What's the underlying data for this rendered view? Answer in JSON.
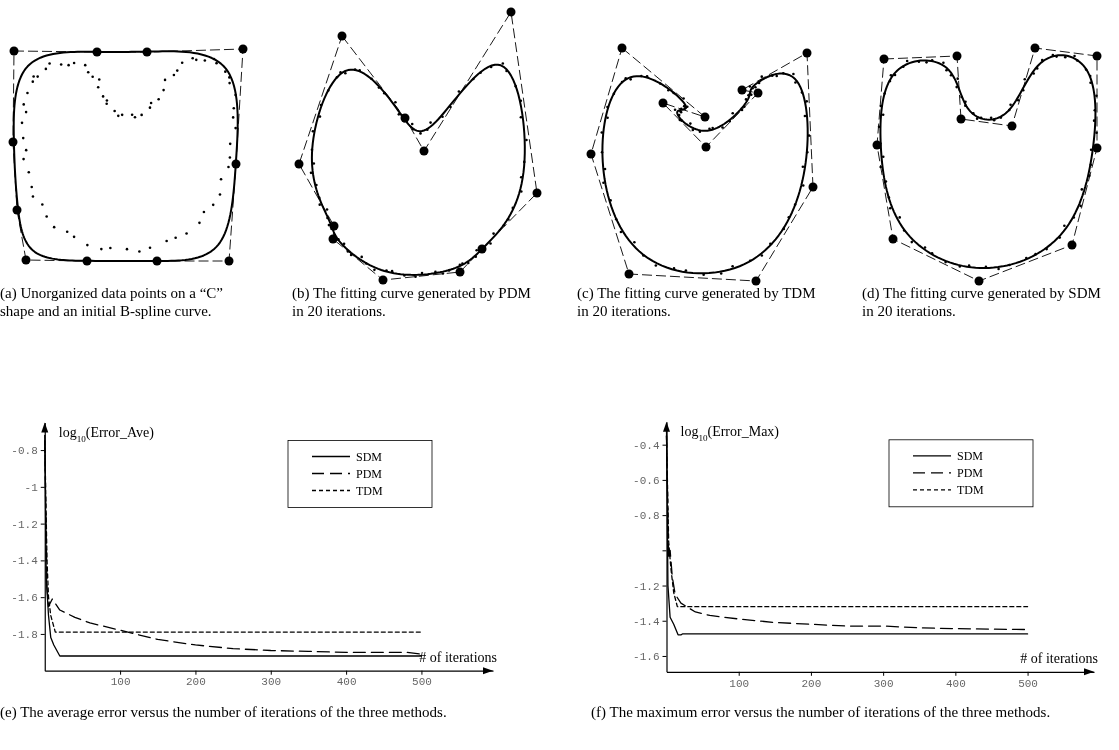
{
  "chart_data": [
    {
      "type": "other",
      "title": "(a) Unorganized data points on a “C” shape and an initial B-spline curve."
    },
    {
      "type": "other",
      "title": "(b) The fitting curve generated by PDM in 20 iterations."
    },
    {
      "type": "other",
      "title": "(c) The fitting curve generated by TDM in 20 iterations."
    },
    {
      "type": "other",
      "title": "(d) The fitting curve generated by SDM in 20 iterations."
    },
    {
      "type": "line",
      "title": "(e) The average error versus the number of iterations of the three methods.",
      "xlabel": "# of iterations",
      "ylabel": "log$_{10}$(Error_Ave)",
      "xlim": [
        0,
        595
      ],
      "ylim": [
        -2,
        -0.65
      ],
      "xticks": [
        100,
        200,
        300,
        400,
        500
      ],
      "yticks": [
        -1.8,
        -1.6,
        -1.4,
        -1.2,
        -1,
        -0.8
      ],
      "legend": "top right",
      "series": [
        {
          "name": "SDM",
          "color": "#000000",
          "line_style": "solid",
          "x": [
            0,
            2,
            5,
            8,
            12,
            20,
            500
          ],
          "values": [
            -0.72,
            -1.5,
            -1.7,
            -1.82,
            -1.86,
            -1.92,
            -1.92
          ]
        },
        {
          "name": "PDM",
          "color": "#000000",
          "line_style": "dashed",
          "x": [
            0,
            3,
            5,
            10,
            20,
            40,
            60,
            100,
            150,
            200,
            250,
            300,
            350,
            400,
            450,
            480,
            500
          ],
          "values": [
            -0.75,
            -1.55,
            -1.65,
            -1.61,
            -1.67,
            -1.71,
            -1.74,
            -1.78,
            -1.83,
            -1.86,
            -1.88,
            -1.89,
            -1.895,
            -1.9,
            -1.9,
            -1.9,
            -1.91
          ]
        },
        {
          "name": "TDM",
          "color": "#000000",
          "line_style": "dotted",
          "x": [
            0,
            3,
            5,
            8,
            14,
            500
          ],
          "values": [
            -0.75,
            -1.4,
            -1.6,
            -1.7,
            -1.79,
            -1.79
          ]
        }
      ]
    },
    {
      "type": "line",
      "title": "(f) The maximum error versus the number of iterations of the three methods.",
      "xlabel": "# of iterations",
      "ylabel": "log$_{10}$(Error_Max)",
      "xlim": [
        0,
        592
      ],
      "ylim": [
        -1.69,
        -0.27
      ],
      "xticks": [
        100,
        200,
        300,
        400,
        500
      ],
      "yticks": [
        -1.6,
        -1.4,
        -1.2,
        {
          "value": -1,
          "label": null
        },
        -0.8,
        -0.6,
        -0.4
      ],
      "legend": "top right",
      "series": [
        {
          "name": "SDM",
          "color": "#000000",
          "line_style": "solid",
          "x": [
            0,
            2,
            5,
            10,
            16,
            20,
            22,
            500
          ],
          "values": [
            -0.3,
            -1.2,
            -1.38,
            -1.42,
            -1.48,
            -1.48,
            -1.475,
            -1.475
          ]
        },
        {
          "name": "PDM",
          "color": "#000000",
          "line_style": "dashed",
          "x": [
            0,
            3,
            5,
            8,
            12,
            20,
            40,
            60,
            100,
            150,
            200,
            250,
            300,
            350,
            400,
            500
          ],
          "values": [
            -0.35,
            -1.05,
            -1.0,
            -1.15,
            -1.25,
            -1.3,
            -1.35,
            -1.37,
            -1.39,
            -1.41,
            -1.42,
            -1.43,
            -1.43,
            -1.44,
            -1.445,
            -1.45
          ]
        },
        {
          "name": "TDM",
          "color": "#000000",
          "line_style": "dotted",
          "x": [
            0,
            3,
            6,
            10,
            15,
            20,
            500
          ],
          "values": [
            -0.35,
            -0.95,
            -1.1,
            -1.24,
            -1.32,
            -1.32,
            -1.32
          ]
        }
      ]
    }
  ]
}
